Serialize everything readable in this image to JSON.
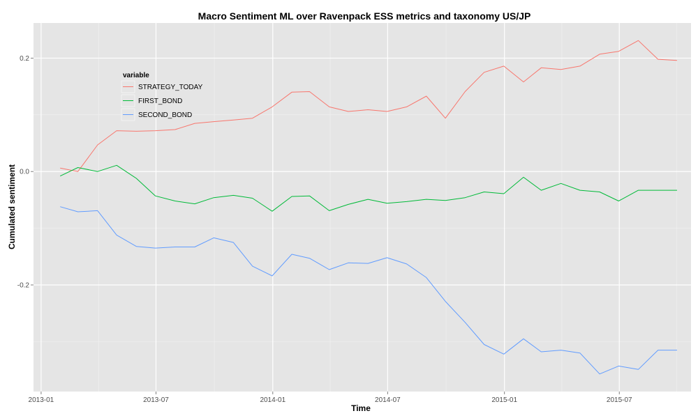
{
  "colors": {
    "panel_background": "#e5e5e5",
    "grid_major": "#ffffff",
    "grid_minor": "#f2f2f2"
  },
  "chart_data": {
    "type": "line",
    "title": "Macro Sentiment ML over Ravenpack ESS metrics and taxonomy US/JP",
    "xlabel": "Time",
    "ylabel": "Cumulated sentiment",
    "x_range": [
      "2012-12-20",
      "2015-10-22"
    ],
    "ylim": [
      -0.388,
      0.262
    ],
    "x_ticks": [
      {
        "date": "2013-01-01",
        "label": "2013-01"
      },
      {
        "date": "2013-07-01",
        "label": "2013-07"
      },
      {
        "date": "2014-01-01",
        "label": "2014-01"
      },
      {
        "date": "2014-07-01",
        "label": "2014-07"
      },
      {
        "date": "2015-01-01",
        "label": "2015-01"
      },
      {
        "date": "2015-07-01",
        "label": "2015-07"
      }
    ],
    "y_ticks": [
      {
        "value": -0.2,
        "label": "-0.2"
      },
      {
        "value": 0.0,
        "label": "0.0"
      },
      {
        "value": 0.2,
        "label": "0.2"
      }
    ],
    "grid": true,
    "legend": {
      "title": "variable",
      "position": "top-left, inside plot"
    },
    "x": [
      "2013-01-31",
      "2013-02-28",
      "2013-03-31",
      "2013-04-30",
      "2013-05-31",
      "2013-06-30",
      "2013-07-31",
      "2013-08-31",
      "2013-09-30",
      "2013-10-31",
      "2013-11-30",
      "2013-12-31",
      "2014-01-31",
      "2014-02-28",
      "2014-03-31",
      "2014-04-30",
      "2014-05-31",
      "2014-06-30",
      "2014-07-31",
      "2014-08-31",
      "2014-09-30",
      "2014-10-31",
      "2014-11-30",
      "2014-12-31",
      "2015-01-31",
      "2015-02-28",
      "2015-03-31",
      "2015-04-30",
      "2015-05-31",
      "2015-06-30",
      "2015-07-31",
      "2015-08-31",
      "2015-09-30"
    ],
    "series": [
      {
        "name": "STRATEGY_TODAY",
        "color": "#F8766D",
        "values": [
          0.006,
          0.0,
          0.047,
          0.072,
          0.071,
          0.072,
          0.074,
          0.085,
          0.088,
          0.091,
          0.094,
          0.114,
          0.14,
          0.141,
          0.114,
          0.106,
          0.109,
          0.106,
          0.114,
          0.133,
          0.094,
          0.141,
          0.175,
          0.186,
          0.158,
          0.183,
          0.18,
          0.186,
          0.207,
          0.212,
          0.231,
          0.198,
          0.196
        ]
      },
      {
        "name": "FIRST_BOND",
        "color": "#00BA38",
        "values": [
          -0.008,
          0.007,
          0.0,
          0.011,
          -0.012,
          -0.043,
          -0.052,
          -0.057,
          -0.046,
          -0.042,
          -0.047,
          -0.07,
          -0.044,
          -0.043,
          -0.069,
          -0.058,
          -0.049,
          -0.056,
          -0.053,
          -0.049,
          -0.051,
          -0.046,
          -0.036,
          -0.039,
          -0.01,
          -0.033,
          -0.021,
          -0.033,
          -0.036,
          -0.052,
          -0.033,
          -0.033,
          -0.033
        ]
      },
      {
        "name": "SECOND_BOND",
        "color": "#619CFF",
        "values": [
          -0.062,
          -0.071,
          -0.069,
          -0.112,
          -0.132,
          -0.135,
          -0.133,
          -0.133,
          -0.117,
          -0.125,
          -0.167,
          -0.184,
          -0.146,
          -0.153,
          -0.173,
          -0.161,
          -0.162,
          -0.152,
          -0.163,
          -0.187,
          -0.229,
          -0.266,
          -0.305,
          -0.322,
          -0.295,
          -0.318,
          -0.315,
          -0.32,
          -0.357,
          -0.343,
          -0.349,
          -0.315,
          -0.315
        ]
      }
    ]
  }
}
